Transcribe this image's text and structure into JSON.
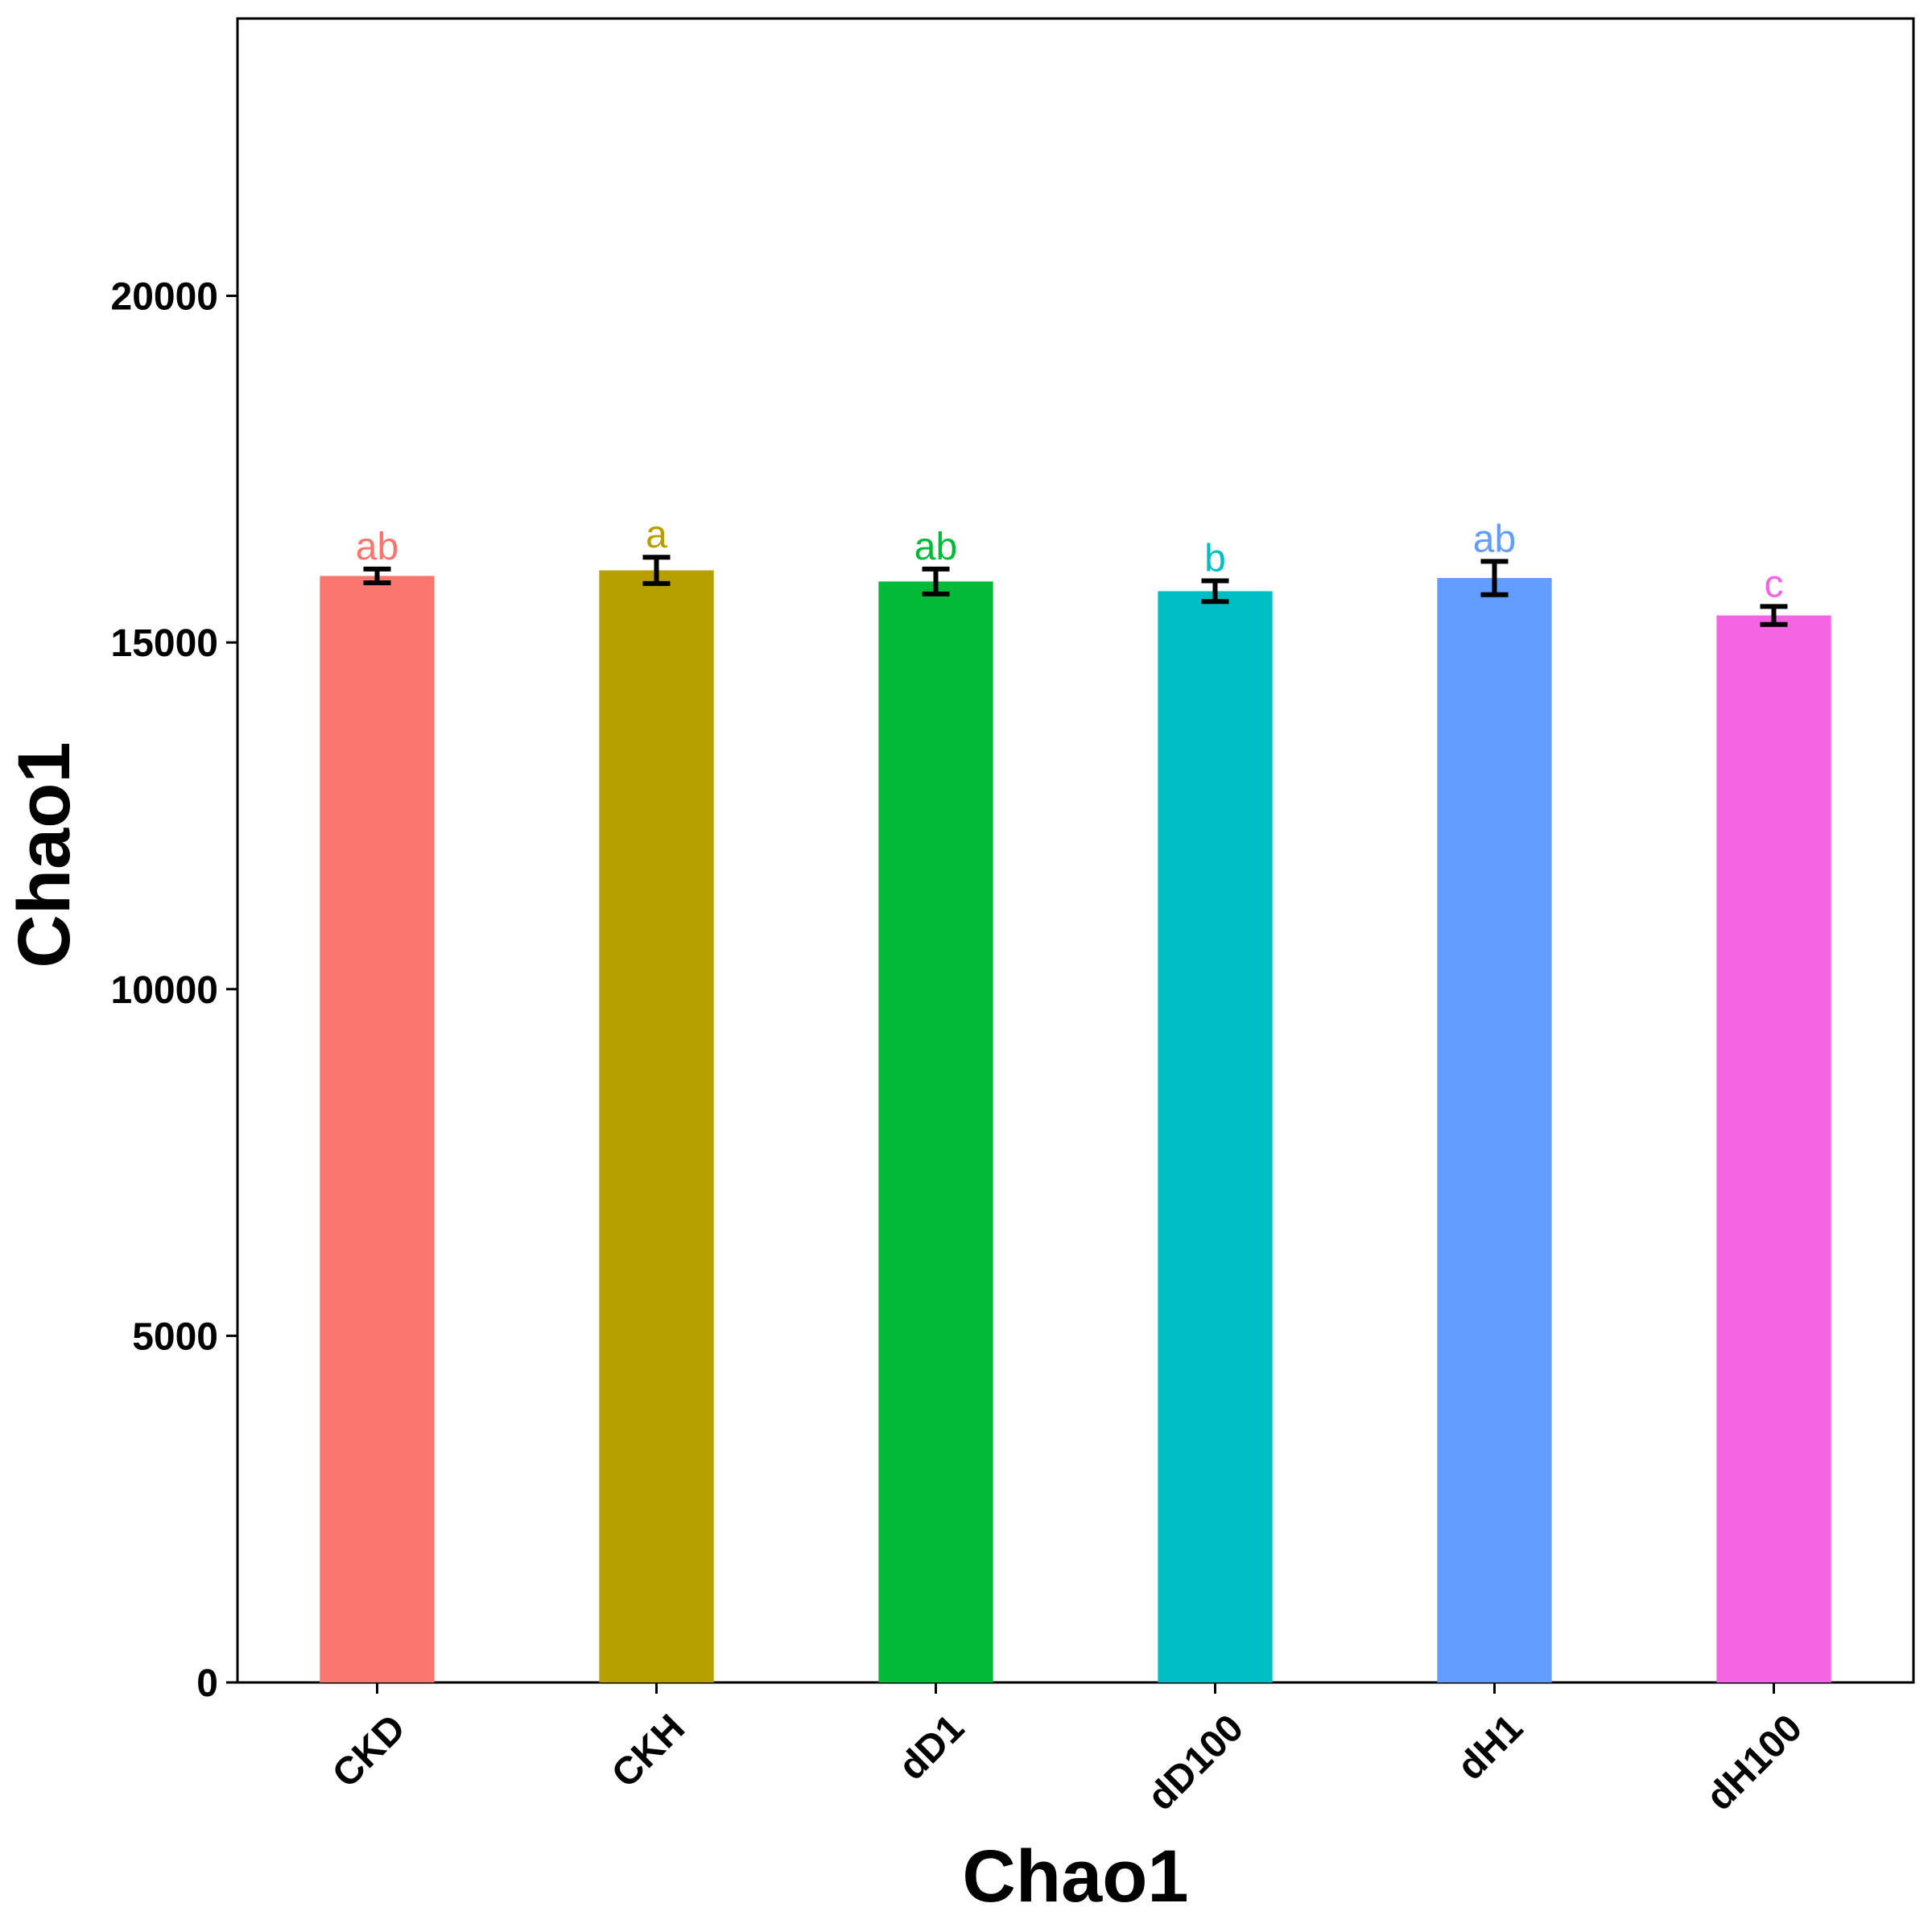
{
  "chart_data": {
    "type": "bar",
    "xlabel": "Chao1",
    "ylabel": "Chao1",
    "ylim": [
      0,
      24000
    ],
    "yticks": [
      0,
      5000,
      10000,
      15000,
      20000
    ],
    "grid": false,
    "legend": "none",
    "categories": [
      "CKD",
      "CKH",
      "dD1",
      "dD100",
      "dH1",
      "dH100"
    ],
    "values": [
      15960,
      16040,
      15880,
      15740,
      15930,
      15390
    ],
    "errors": [
      100,
      190,
      180,
      150,
      240,
      130
    ],
    "significance": [
      "ab",
      "a",
      "ab",
      "b",
      "ab",
      "c"
    ],
    "colors": [
      "#F8766D",
      "#B79F00",
      "#00BA38",
      "#00BFC4",
      "#619CFF",
      "#F564E3"
    ]
  }
}
